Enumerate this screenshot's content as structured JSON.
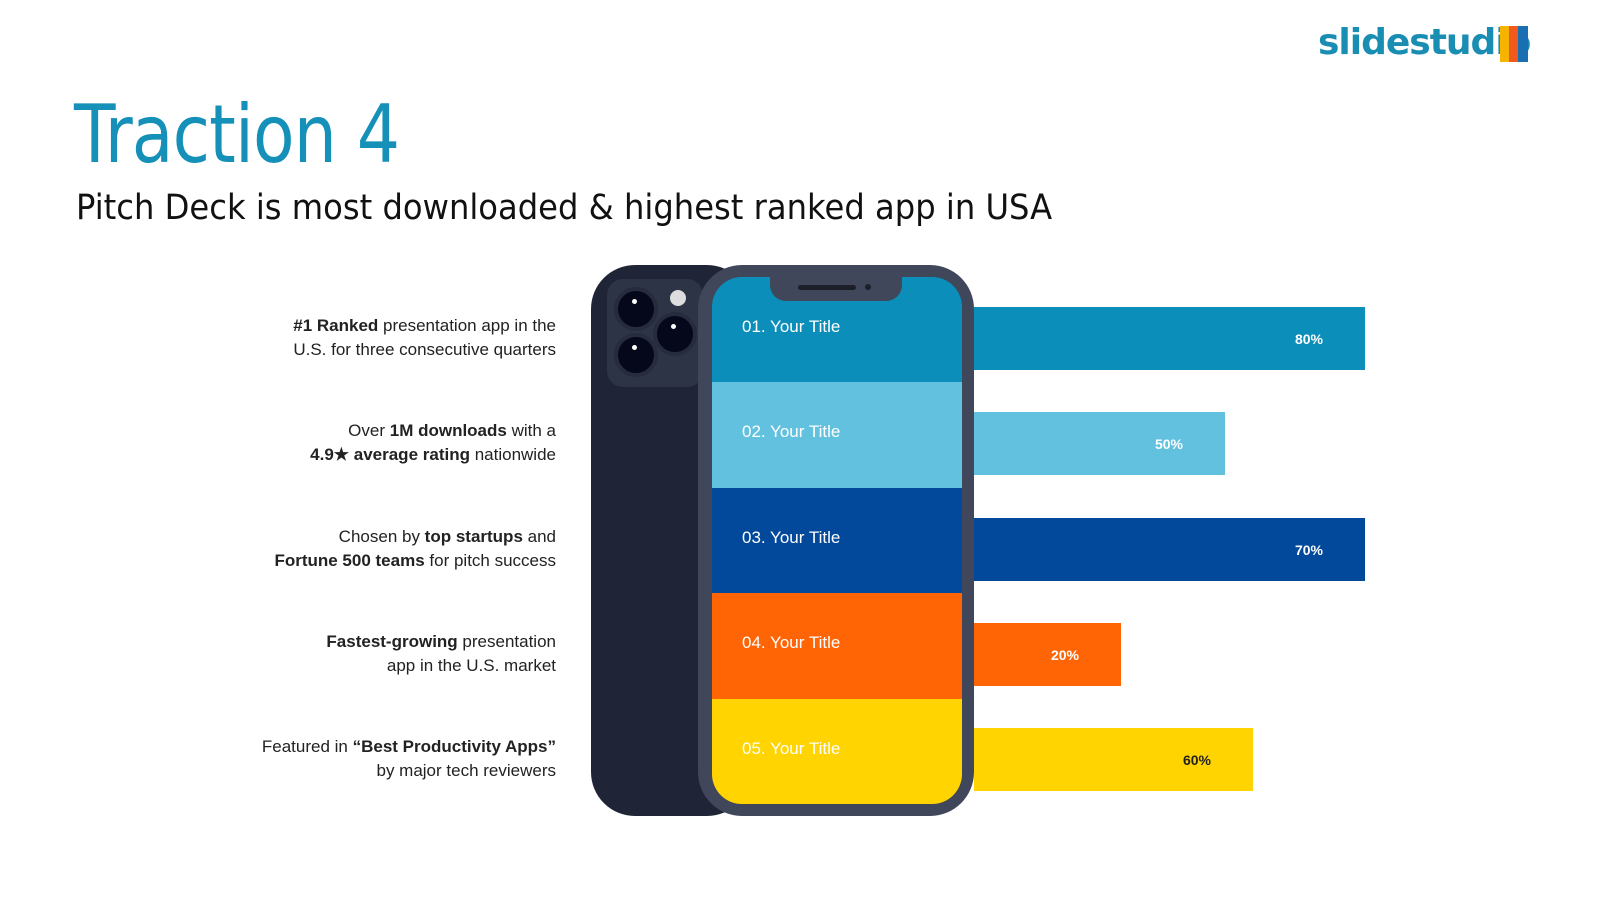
{
  "logo": {
    "text": "slidestudio",
    "colors": [
      "#f6b400",
      "#f05a1a",
      "#1a8db3"
    ]
  },
  "title": "Traction 4",
  "subtitle": "Pitch Deck is most downloaded & highest ranked app in USA",
  "rows": [
    {
      "title": "01. Your Title",
      "percent": 80,
      "label": "80%",
      "color": "#0b8fba",
      "text_color": "#ffffff",
      "desc": [
        {
          "b": "#1 Ranked",
          "t": " presentation app in the"
        },
        {
          "b": "",
          "t": "U.S. for three consecutive quarters"
        }
      ]
    },
    {
      "title": "02. Your Title",
      "percent": 50,
      "label": "50%",
      "color": "#62c1df",
      "text_color": "#ffffff",
      "desc": [
        {
          "b": "",
          "t": "Over ",
          "b2": "1M downloads",
          "t2": " with a"
        },
        {
          "b": "4.9★ average rating",
          "t": " nationwide"
        }
      ]
    },
    {
      "title": "03. Your Title",
      "percent": 70,
      "label": "70%",
      "color": "#03499b",
      "text_color": "#ffffff",
      "desc": [
        {
          "b": "",
          "t": "Chosen by ",
          "b2": "top startups",
          "t2": " and"
        },
        {
          "b": "Fortune 500 teams",
          "t": " for pitch success"
        }
      ]
    },
    {
      "title": "04. Your Title",
      "percent": 20,
      "label": "20%",
      "color": "#ff6505",
      "text_color": "#ffffff",
      "desc": [
        {
          "b": "Fastest-growing",
          "t": " presentation"
        },
        {
          "b": "",
          "t": "app in the U.S. market"
        }
      ]
    },
    {
      "title": "05. Your Title",
      "percent": 60,
      "label": "60%",
      "color": "#ffd400",
      "text_color": "#222222",
      "desc": [
        {
          "b": "",
          "t": "Featured in ",
          "b2": "“Best Productivity Apps”",
          "t2": ""
        },
        {
          "b": "",
          "t": "by major tech reviewers"
        }
      ]
    }
  ]
}
